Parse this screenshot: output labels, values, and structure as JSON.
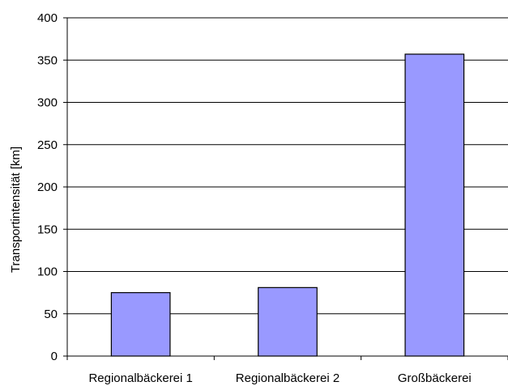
{
  "chart_data": {
    "type": "bar",
    "categories": [
      "Regionalbäckerei 1",
      "Regionalbäckerei 2",
      "Großbäckerei"
    ],
    "values": [
      75,
      81,
      357
    ],
    "ylabel": "Transportintensität [km]",
    "xlabel": "",
    "ylim": [
      0,
      400
    ],
    "yticks": [
      0,
      50,
      100,
      150,
      200,
      250,
      300,
      350,
      400
    ],
    "grid": true,
    "legend": "none",
    "colors": {
      "bar_fill": "#9999ff",
      "bar_stroke": "#000000",
      "grid": "#000000"
    }
  }
}
